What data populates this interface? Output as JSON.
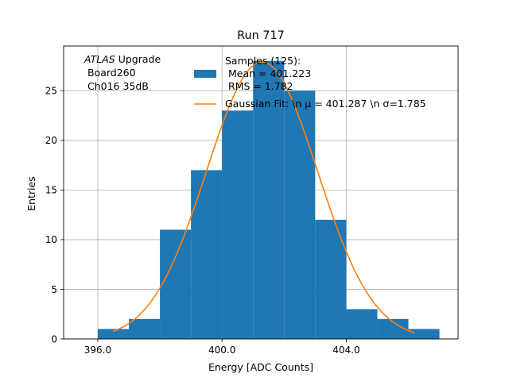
{
  "chart_data": {
    "type": "bar",
    "title": "Run 717",
    "xlabel": "Energy [ADC Counts]",
    "ylabel": "Entries",
    "xlim": [
      394.9,
      407.6
    ],
    "ylim": [
      0,
      29.5
    ],
    "xticks": [
      396.0,
      400.0,
      404.0
    ],
    "xtick_labels": [
      "396.0",
      "400.0",
      "404.0"
    ],
    "yticks": [
      0,
      5,
      10,
      15,
      20,
      25
    ],
    "ytick_labels": [
      "0",
      "5",
      "10",
      "15",
      "20",
      "25"
    ],
    "grid": true,
    "bin_edges": [
      396.0,
      397.0,
      398.0,
      399.0,
      400.0,
      401.0,
      402.0,
      403.0,
      404.0,
      405.0,
      406.0,
      407.0
    ],
    "values": [
      1,
      2,
      11,
      17,
      23,
      28,
      25,
      12,
      3,
      2,
      1
    ],
    "bar_color": "#1f77b4",
    "fit": {
      "type": "gaussian",
      "mean": 401.287,
      "sigma": 1.785,
      "amplitude": 27.9,
      "x_range": [
        396.5,
        406.2
      ],
      "color": "#ff7f0e"
    },
    "annotation": {
      "lines": [
        "ATLAS Upgrade",
        " Board260",
        " Ch016 35dB"
      ],
      "italic_word": "ATLAS",
      "rest_of_first_line": " Upgrade"
    },
    "legend": {
      "position": "top-right",
      "entries": [
        {
          "label_lines": [
            "Samples (125):",
            " Mean = 401.223",
            " RMS = 1.782"
          ],
          "kind": "patch",
          "color": "#1f77b4"
        },
        {
          "label_lines": [
            "Gaussian Fit: \\n μ = 401.287 \\n σ=1.785"
          ],
          "kind": "line",
          "color": "#ff7f0e"
        }
      ]
    }
  }
}
